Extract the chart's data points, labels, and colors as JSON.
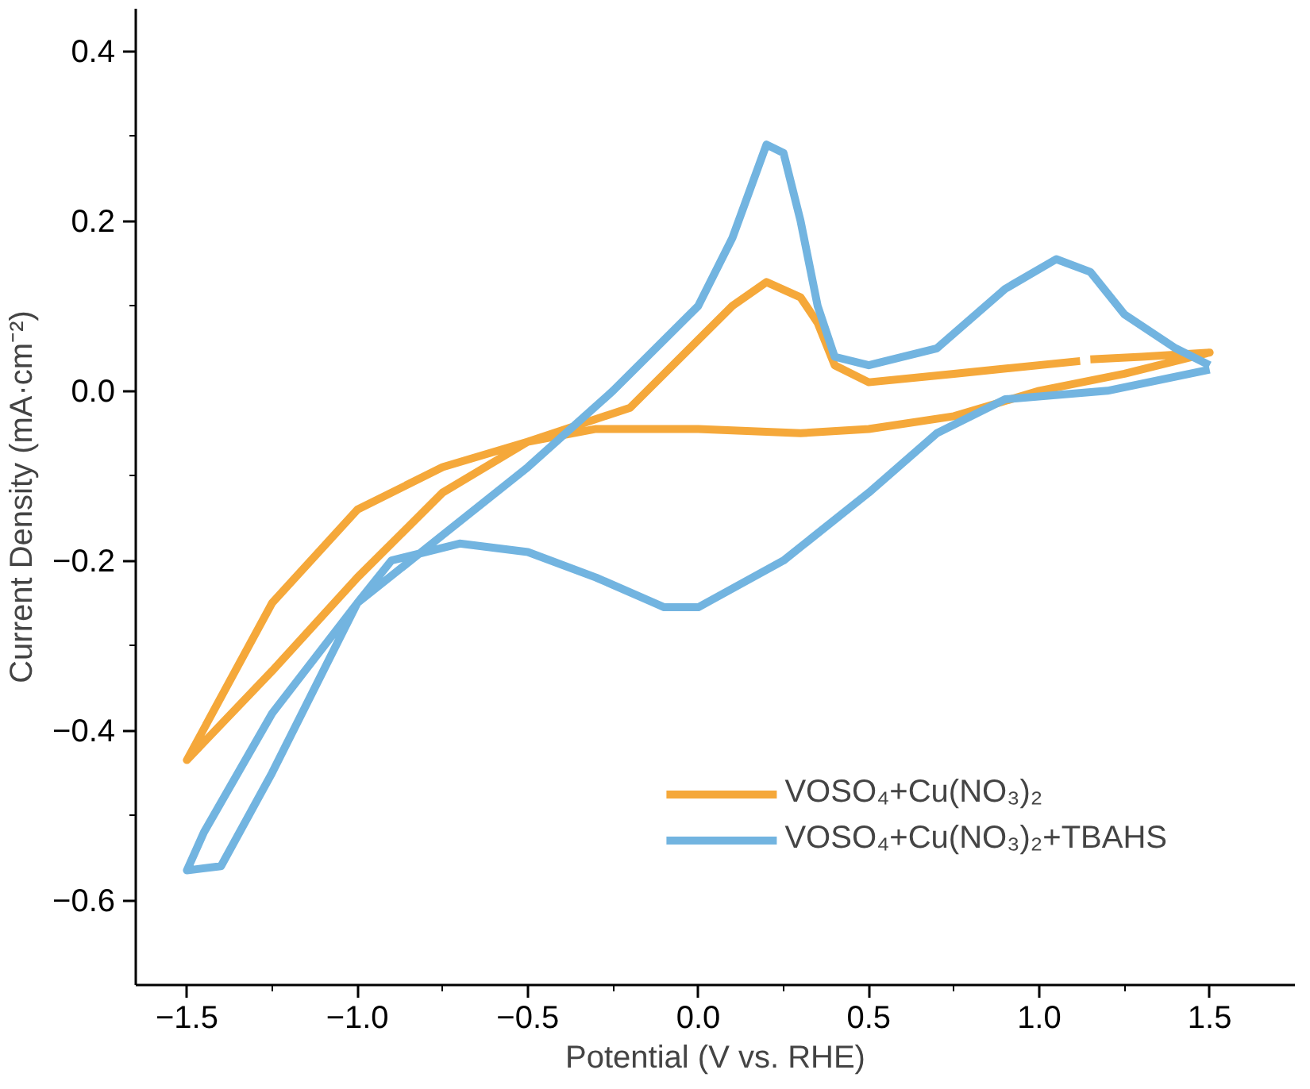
{
  "chart_data": {
    "type": "line",
    "xlabel": "Potential (V vs. RHE)",
    "ylabel": "Current Density (mA·cm⁻²)",
    "xlim": [
      -1.65,
      1.75
    ],
    "ylim": [
      -0.7,
      0.45
    ],
    "xticks": [
      {
        "value": -1.5,
        "label": "−1.5"
      },
      {
        "value": -1.0,
        "label": "−1.0"
      },
      {
        "value": -0.5,
        "label": "−0.5"
      },
      {
        "value": 0,
        "label": "0.0"
      },
      {
        "value": 0.5,
        "label": "0.5"
      },
      {
        "value": 1.0,
        "label": "1.0"
      },
      {
        "value": 1.5,
        "label": "1.5"
      },
      {
        "value": -1.25,
        "label": null
      },
      {
        "value": -0.75,
        "label": null
      },
      {
        "value": -0.25,
        "label": null
      },
      {
        "value": 0.25,
        "label": null
      },
      {
        "value": 0.75,
        "label": null
      },
      {
        "value": 1.25,
        "label": null
      }
    ],
    "yticks": [
      {
        "value": -0.6,
        "label": "−0.6"
      },
      {
        "value": -0.4,
        "label": "−0.4"
      },
      {
        "value": -0.2,
        "label": "−0.2"
      },
      {
        "value": 0,
        "label": "0.0"
      },
      {
        "value": 0.2,
        "label": "0.2"
      },
      {
        "value": 0.4,
        "label": "0.4"
      },
      {
        "value": -0.5,
        "label": null
      },
      {
        "value": -0.3,
        "label": null
      },
      {
        "value": -0.1,
        "label": null
      },
      {
        "value": 0.1,
        "label": null
      },
      {
        "value": 0.3,
        "label": null
      }
    ],
    "grid": false,
    "legend": "bottom right",
    "marker": "none",
    "line_style": "solid",
    "series": [
      {
        "name": "VOSO₄+Cu(NO₃)₂",
        "color": "#f5a83a",
        "x": [
          1.12,
          0.75,
          0.5,
          0.4,
          0.35,
          0.3,
          0.2,
          0.1,
          0,
          -0.2,
          -0.5,
          -0.75,
          -1.0,
          -1.25,
          -1.5,
          -1.25,
          -1.0,
          -0.75,
          -0.5,
          -0.3,
          0,
          0.3,
          0.5,
          0.75,
          1.0,
          1.25,
          1.5,
          1.3,
          1.15
        ],
        "values": [
          0.035,
          0.02,
          0.01,
          0.03,
          0.08,
          0.11,
          0.128,
          0.1,
          0.06,
          -0.02,
          -0.06,
          -0.12,
          -0.22,
          -0.33,
          -0.435,
          -0.25,
          -0.14,
          -0.09,
          -0.06,
          -0.045,
          -0.045,
          -0.05,
          -0.045,
          -0.03,
          0.0,
          0.02,
          0.045,
          0.04,
          0.037
        ]
      },
      {
        "name": "VOSO₄+Cu(NO₃)₂+TBAHS",
        "color": "#72b4e0",
        "x": [
          1.5,
          1.2,
          0.9,
          0.7,
          0.5,
          0.25,
          0,
          -0.1,
          -0.3,
          -0.5,
          -0.7,
          -0.9,
          -1.0,
          -1.1,
          -1.25,
          -1.4,
          -1.5,
          -1.45,
          -1.25,
          -1.0,
          -0.75,
          -0.5,
          -0.25,
          0,
          0.1,
          0.2,
          0.25,
          0.3,
          0.35,
          0.4,
          0.5,
          0.7,
          0.9,
          1.05,
          1.15,
          1.25,
          1.4,
          1.5
        ],
        "values": [
          0.025,
          0.0,
          -0.01,
          -0.05,
          -0.12,
          -0.2,
          -0.255,
          -0.255,
          -0.22,
          -0.19,
          -0.18,
          -0.2,
          -0.25,
          -0.33,
          -0.45,
          -0.56,
          -0.565,
          -0.52,
          -0.38,
          -0.25,
          -0.17,
          -0.09,
          0.0,
          0.1,
          0.18,
          0.29,
          0.28,
          0.2,
          0.1,
          0.04,
          0.03,
          0.05,
          0.12,
          0.155,
          0.14,
          0.09,
          0.05,
          0.03
        ]
      }
    ]
  }
}
